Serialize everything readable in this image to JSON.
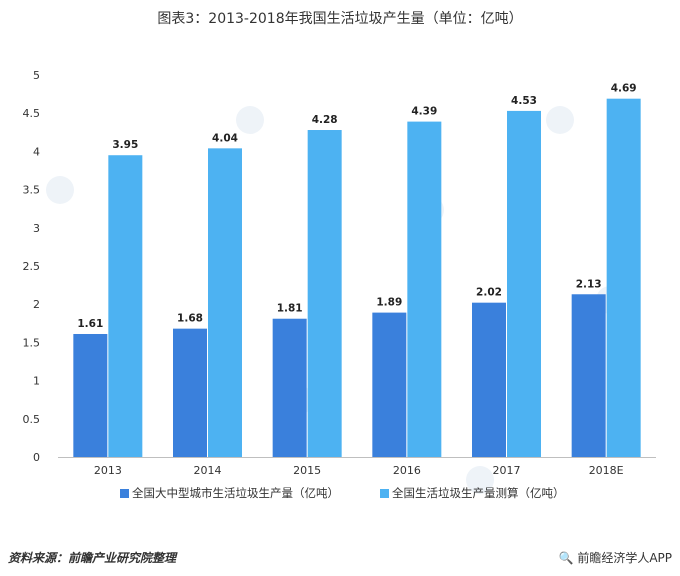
{
  "chart_data": {
    "type": "bar",
    "title": "图表3：2013-2018年我国生活垃圾产生量（单位：亿吨）",
    "categories": [
      "2013",
      "2014",
      "2015",
      "2016",
      "2017",
      "2018E"
    ],
    "series": [
      {
        "name": "全国大中型城市生活垃圾生产量（亿吨）",
        "values": [
          1.61,
          1.68,
          1.81,
          1.89,
          2.02,
          2.13
        ],
        "color": "#3a80dc"
      },
      {
        "name": "全国生活垃圾生产量测算（亿吨）",
        "values": [
          3.95,
          4.04,
          4.28,
          4.39,
          4.53,
          4.69
        ],
        "color": "#4db2f2"
      }
    ],
    "yticks": [
      "0",
      "0.5",
      "1",
      "1.5",
      "2",
      "2.5",
      "3",
      "3.5",
      "4",
      "4.5",
      "5"
    ],
    "ylim": [
      0,
      5
    ],
    "grid": false,
    "legend_position": "bottom"
  },
  "footer": {
    "source": "资料来源：前瞻产业研究院整理",
    "brand": "前瞻经济学人APP"
  },
  "icons": {
    "brand": "magnifier-icon"
  }
}
